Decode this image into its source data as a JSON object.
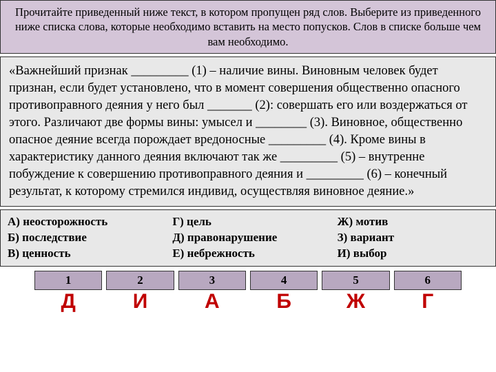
{
  "header": {
    "text": "Прочитайте приведенный ниже текст, в котором пропущен ряд слов. Выберите из приведенного ниже списка слова, которые необходимо вставить на место попусков. Слов в списке больше чем вам необходимо.",
    "background": "#d4c5d8",
    "fontsize": 16.5
  },
  "mainText": {
    "content": "«Важнейший признак _________ (1) – наличие вины. Виновным человек будет признан, если будет установлено, что в момент совершения общественно опасного противоправного деяния у него был _______ (2): совершать его или воздержаться от этого. Различают две формы вины: умысел и ________ (3). Виновное, общественно опасное деяние всегда порождает вредоносные _________ (4). Кроме вины в характеристику данного деяния включают так же _________ (5) – внутренне побуждение к совершению противоправного деяния и _________ (6) – конечный результат, к которому стремился индивид, осуществляя виновное деяние.»",
    "background": "#e8e8e8",
    "fontsize": 18.5
  },
  "options": {
    "col1": {
      "a": "А) неосторожность",
      "b": "Б) последствие",
      "c": "В) ценность"
    },
    "col2": {
      "a": "Г) цель",
      "b": "Д) правонарушение",
      "c": "Е) небрежность"
    },
    "col3": {
      "a": "Ж) мотив",
      "b": "З) вариант",
      "c": "И) выбор"
    },
    "background": "#e8e8e8",
    "fontsize": 17
  },
  "answers": {
    "header_background": "#b8a8c0",
    "letter_color": "#c00000",
    "cells": [
      {
        "num": "1",
        "letter": "Д"
      },
      {
        "num": "2",
        "letter": "И"
      },
      {
        "num": "3",
        "letter": "А"
      },
      {
        "num": "4",
        "letter": "Б"
      },
      {
        "num": "5",
        "letter": "Ж"
      },
      {
        "num": "6",
        "letter": "Г"
      }
    ]
  }
}
